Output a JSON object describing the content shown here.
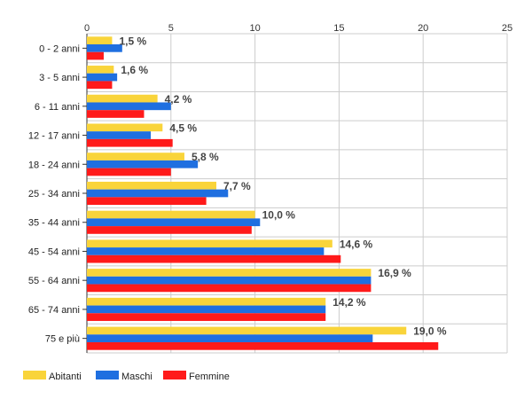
{
  "chart_data": {
    "type": "bar",
    "orientation": "horizontal",
    "categories": [
      "0 - 2 anni",
      "3 - 5 anni",
      "6 - 11 anni",
      "12 - 17 anni",
      "18 - 24 anni",
      "25 - 34 anni",
      "35 - 44 anni",
      "45 - 54 anni",
      "55 - 64 anni",
      "65 - 74 anni",
      "75 e più"
    ],
    "series": [
      {
        "name": "Abitanti",
        "color": "#f9d43a",
        "values": [
          1.5,
          1.6,
          4.2,
          4.5,
          5.8,
          7.7,
          10.0,
          14.6,
          16.9,
          14.2,
          19.0
        ]
      },
      {
        "name": "Maschi",
        "color": "#1f6fe0",
        "values": [
          2.1,
          1.8,
          5.0,
          3.8,
          6.6,
          8.4,
          10.3,
          14.1,
          16.9,
          14.2,
          17.0
        ]
      },
      {
        "name": "Femmine",
        "color": "#ff1a1a",
        "values": [
          1.0,
          1.5,
          3.4,
          5.1,
          5.0,
          7.1,
          9.8,
          15.1,
          16.9,
          14.2,
          20.9
        ]
      }
    ],
    "data_labels": [
      "1,5 %",
      "1,6 %",
      "4,2 %",
      "4,5 %",
      "5,8 %",
      "7,7 %",
      "10,0 %",
      "14,6 %",
      "16,9 %",
      "14,2 %",
      "19,0 %"
    ],
    "x_ticks": [
      0,
      5,
      10,
      15,
      20,
      25
    ],
    "xlim": [
      0,
      25
    ],
    "axis_position": "top",
    "grid": true,
    "legend_position": "bottom-left"
  }
}
